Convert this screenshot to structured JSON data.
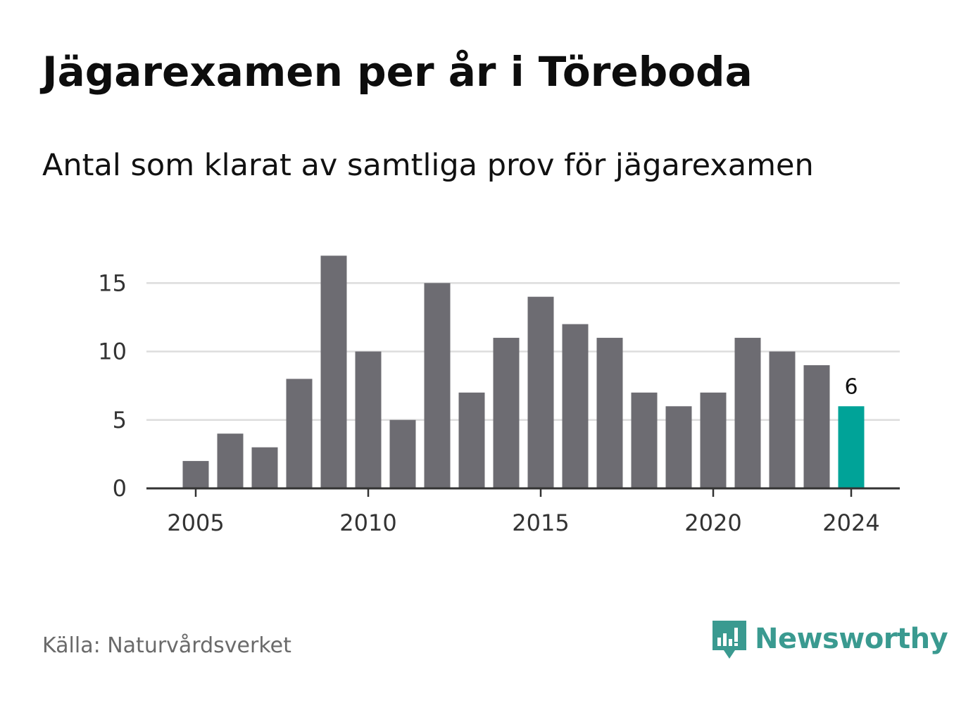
{
  "title": "Jägarexamen per år i Töreboda",
  "subtitle": "Antal som klarat av samtliga prov för jägarexamen",
  "source": "Källa: Naturvårdsverket",
  "brand": {
    "name": "Newsworthy",
    "icon": "newsworthy-logo-icon",
    "color": "#3a9a90"
  },
  "chart_data": {
    "type": "bar",
    "x": [
      2005,
      2006,
      2007,
      2008,
      2009,
      2010,
      2011,
      2012,
      2013,
      2014,
      2015,
      2016,
      2017,
      2018,
      2019,
      2020,
      2021,
      2022,
      2023,
      2024
    ],
    "values": [
      2,
      4,
      3,
      8,
      17,
      10,
      5,
      15,
      7,
      11,
      14,
      12,
      11,
      7,
      6,
      7,
      11,
      10,
      9,
      6
    ],
    "x_ticks": [
      "2005",
      "2010",
      "2015",
      "2020",
      "2024"
    ],
    "y_ticks": [
      "0",
      "5",
      "10",
      "15"
    ],
    "ylim": [
      0,
      17
    ],
    "grid": true,
    "bar_color": "#6d6c72",
    "highlight": {
      "year": 2024,
      "color": "#00a398",
      "label": "6"
    },
    "xlabel": "",
    "ylabel": ""
  }
}
